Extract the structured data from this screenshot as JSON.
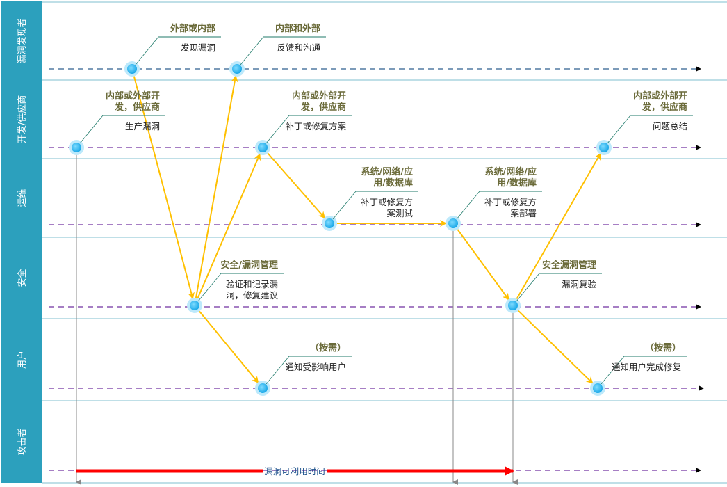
{
  "lanes": [
    "漏洞发现者",
    "开发/供应商",
    "运维",
    "安全",
    "用户",
    "攻击者"
  ],
  "nodes": [
    {
      "id": "A",
      "title": [
        "外部或内部"
      ],
      "desc": [
        "发现漏洞"
      ]
    },
    {
      "id": "B",
      "title": [
        "内部和外部"
      ],
      "desc": [
        "反馈和沟通"
      ]
    },
    {
      "id": "C",
      "title": [
        "内部或外部开",
        "发，供应商"
      ],
      "desc": [
        "生产漏洞"
      ]
    },
    {
      "id": "D",
      "title": [
        "内部或外部开",
        "发，供应商"
      ],
      "desc": [
        "补丁或修复方案"
      ]
    },
    {
      "id": "E",
      "title": [
        "内部或外部开",
        "发，供应商"
      ],
      "desc": [
        "问题总结"
      ]
    },
    {
      "id": "F",
      "title": [
        "系统/网络/应",
        "用/数据库"
      ],
      "desc": [
        "补丁或修复方",
        "案测试"
      ]
    },
    {
      "id": "G",
      "title": [
        "系统/网络/应",
        "用/数据库"
      ],
      "desc": [
        "补丁或修复方",
        "案部署"
      ]
    },
    {
      "id": "H",
      "title": [
        "安全/漏洞管理"
      ],
      "desc": [
        "验证和记录漏",
        "洞，修复建议"
      ]
    },
    {
      "id": "I",
      "title": [
        "安全漏洞管理"
      ],
      "desc": [
        "漏洞复验"
      ]
    },
    {
      "id": "J",
      "title": [
        "（按需）"
      ],
      "desc": [
        "通知受影响用户"
      ]
    },
    {
      "id": "K",
      "title": [
        "（按需）"
      ],
      "desc": [
        "通知用户完成修复"
      ]
    }
  ],
  "flows": [
    [
      "A",
      "H"
    ],
    [
      "H",
      "B"
    ],
    [
      "H",
      "D"
    ],
    [
      "D",
      "F"
    ],
    [
      "F",
      "G"
    ],
    [
      "G",
      "I"
    ],
    [
      "I",
      "E"
    ],
    [
      "H",
      "J"
    ],
    [
      "I",
      "K"
    ]
  ],
  "exploit_window_label": "漏洞可利用时间",
  "colors": {
    "sidebar": "#2ca0bd",
    "lane_border": "#7fbfcf",
    "flow": "#ffc000",
    "exploit_bar": "#ff0000",
    "node": "#29b6f0",
    "timeline_discoverer": "#2f5f8f",
    "timeline_other": "#7030a0",
    "callout": "#1f7a6a"
  }
}
